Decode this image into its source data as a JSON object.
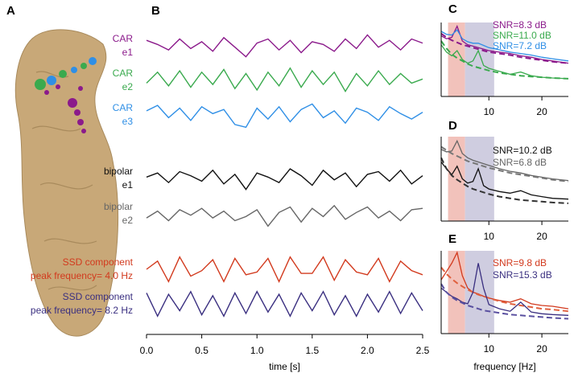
{
  "panel_a": {
    "label": "A"
  },
  "chart_data": [
    {
      "type": "traces",
      "panel": "B",
      "xlabel": "time [s]",
      "x": [
        0,
        0.1,
        0.2,
        0.3,
        0.4,
        0.5,
        0.6,
        0.7,
        0.8,
        0.9,
        1,
        1.1,
        1.2,
        1.3,
        1.4,
        1.5,
        1.6,
        1.7,
        1.8,
        1.9,
        2,
        2.1,
        2.2,
        2.3,
        2.4,
        2.5
      ],
      "xlim": [
        0,
        2.5
      ],
      "xticks": [
        {
          "value": 0,
          "label": "0.0"
        },
        0.5,
        {
          "value": 1,
          "label": "1.0"
        },
        1.5,
        {
          "value": 2,
          "label": "2.0"
        },
        2.5
      ],
      "ylim": [
        -1,
        1
      ],
      "series": [
        {
          "name": [
            "CAR",
            "e1"
          ],
          "color": "#8b1a8b",
          "values": [
            0.4,
            0.1,
            -0.3,
            0.5,
            -0.2,
            0.3,
            -0.4,
            0.6,
            -0.1,
            -0.8,
            0.2,
            0.5,
            -0.3,
            0.4,
            -0.5,
            0.3,
            0.1,
            -0.4,
            0.5,
            -0.2,
            0.8,
            -0.1,
            0.4,
            -0.3,
            0.5,
            0.2
          ]
        },
        {
          "name": [
            "CAR",
            "e2"
          ],
          "color": "#3aaa4e",
          "values": [
            -0.2,
            0.6,
            -0.4,
            0.7,
            -0.5,
            0.6,
            -0.3,
            0.8,
            -0.6,
            0.5,
            -0.7,
            0.6,
            -0.4,
            0.9,
            -0.5,
            0.7,
            -0.3,
            0.6,
            -0.8,
            0.5,
            -0.4,
            0.7,
            -0.3,
            0.5,
            -0.2,
            0.1
          ]
        },
        {
          "name": [
            "CAR",
            "e3"
          ],
          "color": "#2f8fe6",
          "values": [
            0.3,
            0.7,
            -0.2,
            0.5,
            -0.4,
            0.6,
            0.1,
            0.4,
            -0.7,
            -0.9,
            0.5,
            -0.3,
            0.6,
            -0.5,
            0.4,
            0.8,
            -0.2,
            0.3,
            -0.6,
            0.5,
            0.2,
            -0.4,
            0.6,
            0.1,
            -0.3,
            0.2
          ]
        },
        {
          "name": [
            "bipolar",
            "e1"
          ],
          "color": "#111111",
          "values": [
            0.1,
            0.4,
            -0.3,
            0.5,
            0.2,
            -0.2,
            0.6,
            -0.4,
            0.3,
            -0.8,
            0.4,
            0.1,
            -0.3,
            0.7,
            0.2,
            -0.5,
            0.6,
            -0.1,
            0.4,
            -0.6,
            0.3,
            0.5,
            -0.2,
            0.6,
            -0.4,
            0.2
          ]
        },
        {
          "name": [
            "bipolar",
            "e2"
          ],
          "color": "#666666",
          "values": [
            -0.3,
            0.2,
            -0.5,
            0.3,
            -0.1,
            0.4,
            -0.3,
            0.2,
            -0.5,
            -0.2,
            0.3,
            -0.9,
            0.1,
            0.5,
            -0.6,
            0.4,
            -0.2,
            0.6,
            -0.4,
            0.1,
            0.5,
            -0.3,
            0.2,
            -0.5,
            0.3,
            0.4
          ]
        },
        {
          "name": [
            "SSD component",
            "peak frequency= 4.0 Hz"
          ],
          "color": "#d23a1e",
          "values": [
            0,
            0.6,
            -0.9,
            0.9,
            -0.5,
            -0.1,
            0.7,
            -0.9,
            0.8,
            -0.4,
            -0.2,
            0.8,
            -0.9,
            0.9,
            -0.3,
            -0.3,
            0.9,
            -0.8,
            0.7,
            -0.2,
            -0.4,
            0.8,
            -0.9,
            0.6,
            -0.1,
            -0.4
          ]
        },
        {
          "name": [
            "SSD component",
            "peak frequency= 8.2 Hz"
          ],
          "color": "#3a2f80",
          "values": [
            0.8,
            -0.9,
            0.7,
            -0.5,
            0.9,
            -0.8,
            0.6,
            -0.9,
            0.8,
            -0.7,
            0.9,
            -0.6,
            0.7,
            -0.9,
            0.8,
            -0.5,
            0.9,
            -0.8,
            0.6,
            -0.9,
            0.7,
            -0.6,
            0.9,
            -0.7,
            0.8,
            -0.5
          ]
        }
      ]
    },
    {
      "type": "spectrum",
      "panel": "C",
      "x": [
        1,
        2,
        3,
        4,
        5,
        6,
        7,
        8,
        9,
        10,
        12,
        14,
        16,
        18,
        20,
        22,
        25
      ],
      "xlim": [
        1,
        25
      ],
      "xticks": [
        10,
        20
      ],
      "ylim": [
        0,
        1
      ],
      "spans": [
        {
          "range": [
            2.3,
            5.5
          ],
          "color": "#f2c2bb"
        },
        {
          "range": [
            5.5,
            11
          ],
          "color": "#cfcde0"
        }
      ],
      "annotations": [
        {
          "text": "SNR=8.3 dB",
          "color": "#8b1a8b"
        },
        {
          "text": "SNR=11.0 dB",
          "color": "#3aaa4e"
        },
        {
          "text": "SNR=7.2 dB",
          "color": "#2f8fe6"
        }
      ],
      "series": [
        {
          "color": "#8b1a8b",
          "values": [
            0.82,
            0.78,
            0.8,
            0.95,
            0.75,
            0.7,
            0.68,
            0.66,
            0.64,
            0.62,
            0.6,
            0.58,
            0.55,
            0.53,
            0.5,
            0.48,
            0.45
          ]
        },
        {
          "color": "#8b1a8b",
          "dashed": true,
          "values": [
            0.85,
            0.8,
            0.76,
            0.73,
            0.7,
            0.68,
            0.66,
            0.64,
            0.62,
            0.6,
            0.58,
            0.56,
            0.53,
            0.51,
            0.49,
            0.47,
            0.45
          ]
        },
        {
          "color": "#3aaa4e",
          "values": [
            0.7,
            0.6,
            0.55,
            0.62,
            0.5,
            0.45,
            0.48,
            0.62,
            0.42,
            0.38,
            0.34,
            0.3,
            0.33,
            0.28,
            0.26,
            0.25,
            0.24
          ]
        },
        {
          "color": "#3aaa4e",
          "dashed": true,
          "values": [
            0.75,
            0.65,
            0.57,
            0.52,
            0.48,
            0.44,
            0.41,
            0.39,
            0.37,
            0.35,
            0.32,
            0.3,
            0.28,
            0.27,
            0.26,
            0.25,
            0.24
          ]
        },
        {
          "color": "#2f8fe6",
          "values": [
            0.88,
            0.84,
            0.83,
            0.9,
            0.78,
            0.74,
            0.72,
            0.72,
            0.69,
            0.66,
            0.63,
            0.6,
            0.58,
            0.56,
            0.53,
            0.51,
            0.48
          ]
        }
      ]
    },
    {
      "type": "spectrum",
      "panel": "D",
      "x": [
        1,
        2,
        3,
        4,
        5,
        6,
        7,
        8,
        9,
        10,
        12,
        14,
        16,
        18,
        20,
        22,
        25
      ],
      "xlim": [
        1,
        25
      ],
      "xticks": [
        10,
        20
      ],
      "ylim": [
        0,
        1
      ],
      "spans": [
        {
          "range": [
            2.3,
            5.5
          ],
          "color": "#f2c2bb"
        },
        {
          "range": [
            5.5,
            11
          ],
          "color": "#cfcde0"
        }
      ],
      "annotations": [
        {
          "text": "SNR=10.2 dB",
          "color": "#111111"
        },
        {
          "text": "SNR=6.8 dB",
          "color": "#666666"
        }
      ],
      "series": [
        {
          "color": "#111111",
          "values": [
            0.7,
            0.62,
            0.55,
            0.65,
            0.5,
            0.45,
            0.47,
            0.62,
            0.42,
            0.38,
            0.35,
            0.33,
            0.36,
            0.31,
            0.29,
            0.27,
            0.26
          ]
        },
        {
          "color": "#333333",
          "dashed": true,
          "values": [
            0.75,
            0.62,
            0.54,
            0.49,
            0.45,
            0.41,
            0.38,
            0.36,
            0.34,
            0.32,
            0.29,
            0.27,
            0.25,
            0.24,
            0.23,
            0.22,
            0.21
          ]
        },
        {
          "color": "#666666",
          "values": [
            0.85,
            0.82,
            0.83,
            0.95,
            0.8,
            0.75,
            0.72,
            0.7,
            0.68,
            0.66,
            0.62,
            0.59,
            0.57,
            0.54,
            0.52,
            0.5,
            0.48
          ]
        },
        {
          "color": "#777777",
          "dashed": true,
          "values": [
            0.88,
            0.84,
            0.8,
            0.77,
            0.74,
            0.71,
            0.69,
            0.67,
            0.65,
            0.63,
            0.6,
            0.57,
            0.55,
            0.53,
            0.51,
            0.49,
            0.47
          ]
        }
      ]
    },
    {
      "type": "spectrum",
      "panel": "E",
      "xlabel": "frequency [Hz]",
      "x": [
        1,
        2,
        3,
        4,
        5,
        6,
        7,
        8,
        9,
        10,
        12,
        14,
        16,
        18,
        20,
        22,
        25
      ],
      "xlim": [
        1,
        25
      ],
      "xticks": [
        10,
        20
      ],
      "ylim": [
        0,
        1
      ],
      "spans": [
        {
          "range": [
            2.3,
            5.5
          ],
          "color": "#f2c2bb"
        },
        {
          "range": [
            5.5,
            11
          ],
          "color": "#cfcde0"
        }
      ],
      "annotations": [
        {
          "text": "SNR=9.8 dB",
          "color": "#d23a1e"
        },
        {
          "text": "SNR=15.3 dB",
          "color": "#3a2f80"
        }
      ],
      "series": [
        {
          "color": "#d23a1e",
          "values": [
            0.65,
            0.75,
            0.85,
            0.98,
            0.7,
            0.55,
            0.5,
            0.48,
            0.45,
            0.43,
            0.4,
            0.38,
            0.42,
            0.36,
            0.34,
            0.33,
            0.3
          ]
        },
        {
          "color": "#e0603e",
          "dashed": true,
          "values": [
            0.8,
            0.72,
            0.66,
            0.61,
            0.57,
            0.53,
            0.5,
            0.47,
            0.45,
            0.43,
            0.39,
            0.36,
            0.34,
            0.32,
            0.3,
            0.29,
            0.27
          ]
        },
        {
          "color": "#3a2f80",
          "values": [
            0.55,
            0.5,
            0.45,
            0.42,
            0.38,
            0.36,
            0.5,
            0.85,
            0.55,
            0.35,
            0.3,
            0.27,
            0.38,
            0.26,
            0.24,
            0.23,
            0.22
          ]
        },
        {
          "color": "#5a50a0",
          "dashed": true,
          "values": [
            0.6,
            0.5,
            0.44,
            0.4,
            0.37,
            0.34,
            0.32,
            0.3,
            0.28,
            0.27,
            0.25,
            0.23,
            0.22,
            0.21,
            0.2,
            0.19,
            0.18
          ]
        }
      ]
    }
  ]
}
